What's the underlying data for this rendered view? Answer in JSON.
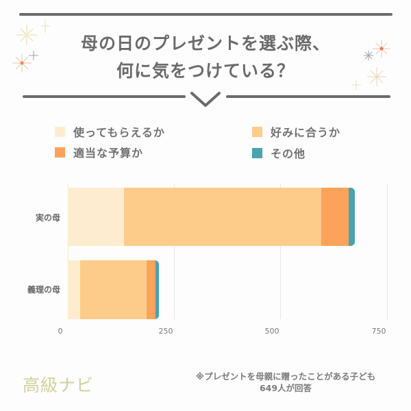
{
  "header": {
    "title_line1": "母の日のプレゼントを選ぶ際、",
    "title_line2": "何に気をつけている？",
    "decor_icons": [
      "sparkle-icon",
      "chevron-down-icon"
    ]
  },
  "legend": {
    "items": [
      {
        "label": "使ってもらえるか",
        "color": "#feecd0"
      },
      {
        "label": "好みに合うか",
        "color": "#fdcc8a"
      },
      {
        "label": "適当な予算か",
        "color": "#fba35a"
      },
      {
        "label": "その他",
        "color": "#4aa3b0"
      }
    ]
  },
  "chart_data": {
    "type": "bar",
    "orientation": "horizontal",
    "stacked": true,
    "title": "母の日のプレゼントを選ぶ際、何に気をつけている？",
    "categories": [
      "実の母",
      "義理の母"
    ],
    "series": [
      {
        "name": "使ってもらえるか",
        "color": "#feecd0",
        "values": [
          132,
          29
        ]
      },
      {
        "name": "好みに合うか",
        "color": "#fdcc8a",
        "values": [
          463,
          156
        ]
      },
      {
        "name": "適当な予算か",
        "color": "#fba35a",
        "values": [
          65,
          21
        ]
      },
      {
        "name": "その他",
        "color": "#4aa3b0",
        "values": [
          15,
          8
        ]
      }
    ],
    "xlabel": "",
    "ylabel": "",
    "xlim": [
      0,
      750
    ],
    "xticks": [
      "0",
      "250",
      "500",
      "750"
    ],
    "grid": true,
    "legend_position": "top"
  },
  "footer": {
    "logo": "高級ナビ",
    "note_line1": "※プレゼントを母親に贈ったことがある子ども",
    "note_line2": "649人が回答"
  }
}
